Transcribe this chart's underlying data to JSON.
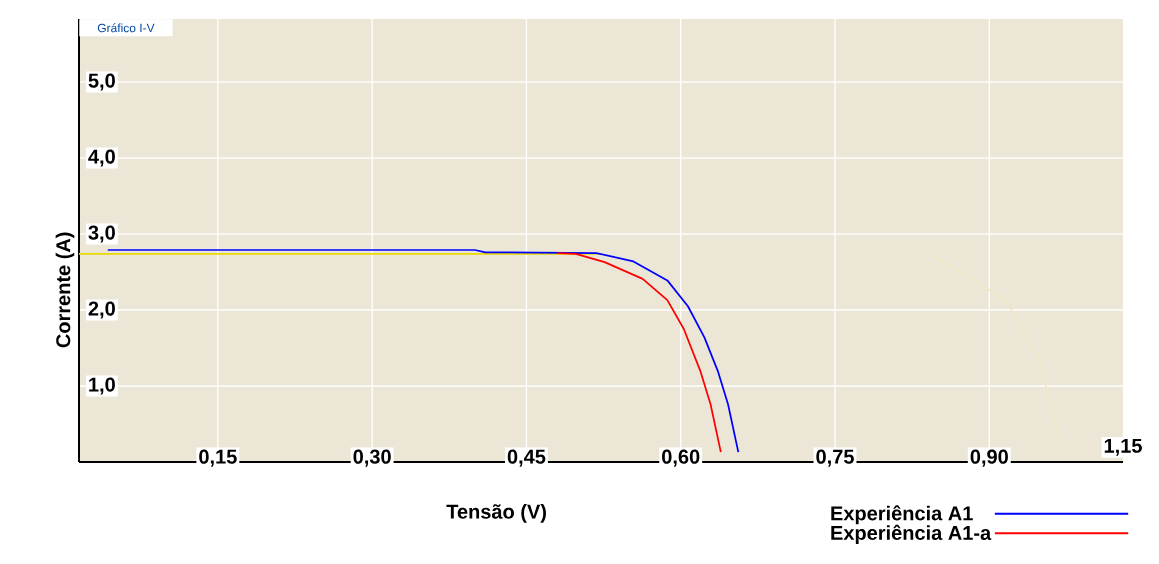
{
  "chart_data": {
    "type": "line",
    "title": "Gráfico I-V",
    "xlabel": "Tensão (V)",
    "ylabel": "Corrente (A)",
    "xlim": [
      0.015,
      1.03
    ],
    "ylim": [
      0,
      5.83
    ],
    "xticks": [
      {
        "value": 0.15,
        "label": "0,15"
      },
      {
        "value": 0.3,
        "label": "0,30"
      },
      {
        "value": 0.45,
        "label": "0,45"
      },
      {
        "value": 0.6,
        "label": "0,60"
      },
      {
        "value": 0.75,
        "label": "0,75"
      },
      {
        "value": 0.9,
        "label": "0,90"
      }
    ],
    "annotations": [
      "1,15"
    ],
    "yticks": [
      {
        "value": 1,
        "label": "1,0"
      },
      {
        "value": 2,
        "label": "2,0"
      },
      {
        "value": 3,
        "label": "3,0"
      },
      {
        "value": 4,
        "label": "4,0"
      },
      {
        "value": 5,
        "label": "5,0"
      }
    ],
    "grid": true,
    "legend": "bottom right",
    "marker": "none",
    "line_style": "solid",
    "series": [
      {
        "color": "#e8d800",
        "x": [
          0.015,
          0.52
        ],
        "values": [
          2.74,
          2.74
        ]
      },
      {
        "color": "#eee8c4",
        "x": [
          0.846,
          0.916,
          0.948,
          0.968
        ],
        "values": [
          2.71,
          2.13,
          1.37,
          0.33
        ]
      },
      {
        "name": "Experiência A1",
        "color": "#0000ff",
        "x": [
          0.043,
          0.4,
          0.41,
          0.518,
          0.554,
          0.587,
          0.607,
          0.623,
          0.636,
          0.646,
          0.656
        ],
        "values": [
          2.79,
          2.79,
          2.76,
          2.75,
          2.64,
          2.39,
          2.05,
          1.64,
          1.2,
          0.76,
          0.13
        ]
      },
      {
        "name": "Experiência A1-a",
        "color": "#ff0000",
        "x": [
          0.48,
          0.498,
          0.526,
          0.563,
          0.587,
          0.603,
          0.619,
          0.629,
          0.639
        ],
        "values": [
          2.75,
          2.74,
          2.63,
          2.41,
          2.13,
          1.75,
          1.2,
          0.76,
          0.13
        ]
      }
    ]
  }
}
